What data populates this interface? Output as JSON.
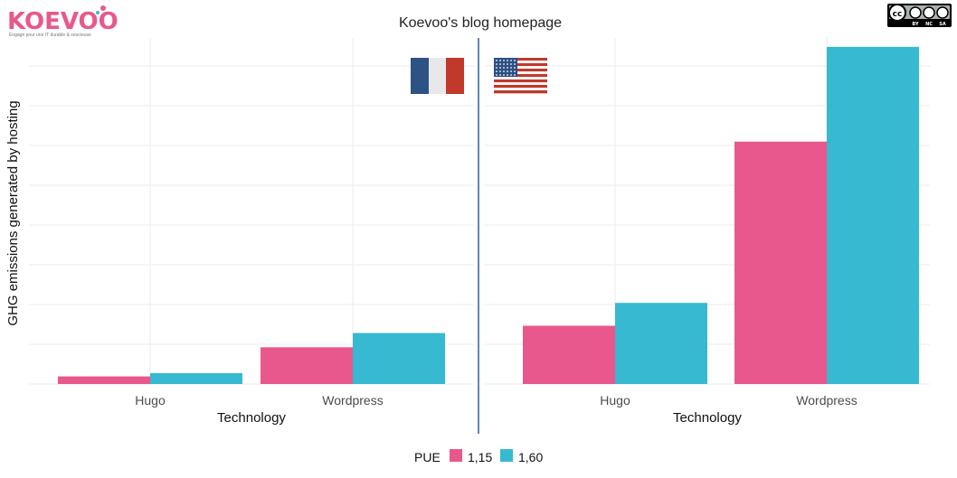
{
  "title": "Koevoo's blog homepage",
  "logo": {
    "text": "KOEVOO",
    "tagline": "Engagé pour une IT durable & soucieuse"
  },
  "license": {
    "badge": "cc",
    "labels": [
      "BY",
      "NC",
      "SA"
    ]
  },
  "colors": {
    "pue_115": "#e8588c",
    "pue_160": "#37b9d1",
    "divider": "#2b5ea7",
    "grid": "#ebebeb"
  },
  "chart_data": {
    "type": "bar",
    "ylabel": "GHG emissions generated by hosting",
    "ylim": [
      0,
      100
    ],
    "y_ticks_labeled": false,
    "grid": true,
    "legend": {
      "title": "PUE",
      "position": "bottom",
      "entries": [
        "1,15",
        "1,60"
      ]
    },
    "panels": [
      {
        "flag": "france-flag",
        "xlabel": "Technology",
        "categories": [
          "Hugo",
          "Wordpress"
        ],
        "series": [
          {
            "name": "1,15",
            "values": [
              2.3,
              11.1
            ]
          },
          {
            "name": "1,60",
            "values": [
              3.3,
              15.4
            ]
          }
        ]
      },
      {
        "flag": "usa-flag",
        "xlabel": "Technology",
        "categories": [
          "Hugo",
          "Wordpress"
        ],
        "series": [
          {
            "name": "1,15",
            "values": [
              17.6,
              73.2
            ]
          },
          {
            "name": "1,60",
            "values": [
              24.5,
              101.8
            ]
          }
        ]
      }
    ]
  }
}
